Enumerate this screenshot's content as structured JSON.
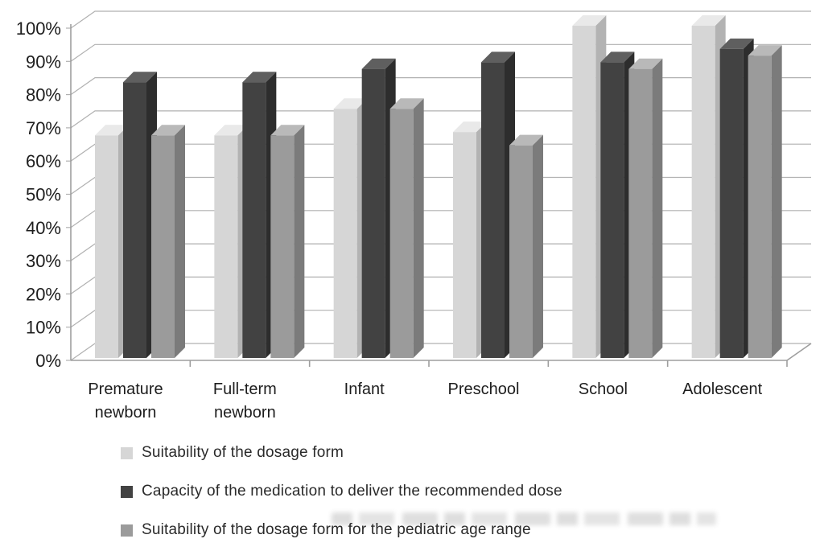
{
  "figure": {
    "background": "#ffffff"
  },
  "chart_data": {
    "type": "bar",
    "style": "3d-clustered-column",
    "title": "",
    "xlabel": "",
    "ylabel": "",
    "categories": [
      "Premature newborn",
      "Full-term newborn",
      "Infant",
      "Preschool",
      "School",
      "Adolescent"
    ],
    "category_lines": [
      [
        "Premature",
        "newborn"
      ],
      [
        "Full-term",
        "newborn"
      ],
      [
        "Infant"
      ],
      [
        "Preschool"
      ],
      [
        "School"
      ],
      [
        "Adolescent"
      ]
    ],
    "series": [
      {
        "name": "Suitability of the dosage form",
        "values": [
          67,
          67,
          75,
          68,
          100,
          100
        ],
        "color_front": "#d6d6d6",
        "color_top": "#e9e9e9",
        "color_side": "#b3b3b3"
      },
      {
        "name": "Capacity of the medication to deliver the recommended dose",
        "values": [
          83,
          83,
          87,
          89,
          89,
          93
        ],
        "color_front": "#424242",
        "color_top": "#5f5f5f",
        "color_side": "#2d2d2d"
      },
      {
        "name": "Suitability of the dosage form for the pediatric age range",
        "values": [
          67,
          67,
          75,
          64,
          87,
          91
        ],
        "color_front": "#9b9b9b",
        "color_top": "#b9b9b9",
        "color_side": "#7b7b7b"
      }
    ],
    "ylim": [
      0,
      100
    ],
    "ytick_step": 10,
    "ytick_labels": [
      "0%",
      "10%",
      "20%",
      "30%",
      "40%",
      "50%",
      "60%",
      "70%",
      "80%",
      "90%",
      "100%"
    ],
    "grid": true,
    "legend_position": "bottom-left",
    "grid_color": "#b1b1b1",
    "axis_color": "#9e9e9e",
    "text_color": "#1d1d1d"
  }
}
